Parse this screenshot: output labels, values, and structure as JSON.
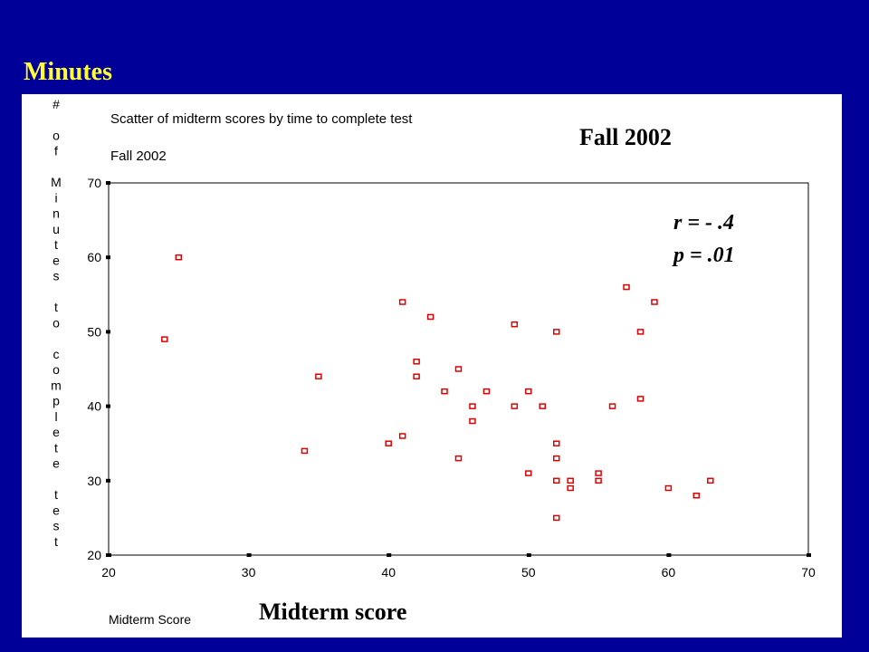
{
  "slide": {
    "title": "Minutes",
    "subtitle": "Midterm score",
    "annotation_label": "Fall 2002"
  },
  "stats": {
    "r": "r = - .4",
    "p": "p = .01"
  },
  "colors": {
    "background": "#000099",
    "title": "#FFFF33",
    "marker": "#E00000",
    "panel": "#FFFFFF"
  },
  "chart_data": {
    "type": "scatter",
    "title": "Scatter of midterm scores by time to complete test",
    "subtitle": "Fall 2002",
    "xlabel": "Midterm Score",
    "ylabel": "# of Minutes to complete test",
    "xlim": [
      20,
      70
    ],
    "ylim": [
      20,
      70
    ],
    "xticks": [
      "20",
      "30",
      "40",
      "50",
      "60",
      "70"
    ],
    "yticks": [
      "20",
      "30",
      "40",
      "50",
      "60",
      "70"
    ],
    "grid": false,
    "points": [
      {
        "x": 24,
        "y": 49
      },
      {
        "x": 25,
        "y": 60
      },
      {
        "x": 34,
        "y": 34
      },
      {
        "x": 35,
        "y": 44
      },
      {
        "x": 40,
        "y": 35
      },
      {
        "x": 41,
        "y": 36
      },
      {
        "x": 41,
        "y": 54
      },
      {
        "x": 42,
        "y": 46
      },
      {
        "x": 42,
        "y": 44
      },
      {
        "x": 43,
        "y": 52
      },
      {
        "x": 44,
        "y": 42
      },
      {
        "x": 45,
        "y": 45
      },
      {
        "x": 45,
        "y": 33
      },
      {
        "x": 46,
        "y": 40
      },
      {
        "x": 46,
        "y": 38
      },
      {
        "x": 47,
        "y": 42
      },
      {
        "x": 49,
        "y": 51
      },
      {
        "x": 49,
        "y": 40
      },
      {
        "x": 50,
        "y": 42
      },
      {
        "x": 50,
        "y": 31
      },
      {
        "x": 51,
        "y": 40
      },
      {
        "x": 52,
        "y": 50
      },
      {
        "x": 52,
        "y": 35
      },
      {
        "x": 52,
        "y": 33
      },
      {
        "x": 52,
        "y": 30
      },
      {
        "x": 52,
        "y": 25
      },
      {
        "x": 53,
        "y": 30
      },
      {
        "x": 53,
        "y": 29
      },
      {
        "x": 55,
        "y": 31
      },
      {
        "x": 55,
        "y": 30
      },
      {
        "x": 56,
        "y": 40
      },
      {
        "x": 57,
        "y": 56
      },
      {
        "x": 58,
        "y": 50
      },
      {
        "x": 58,
        "y": 41
      },
      {
        "x": 59,
        "y": 54
      },
      {
        "x": 60,
        "y": 29
      },
      {
        "x": 62,
        "y": 28
      },
      {
        "x": 63,
        "y": 30
      }
    ]
  }
}
